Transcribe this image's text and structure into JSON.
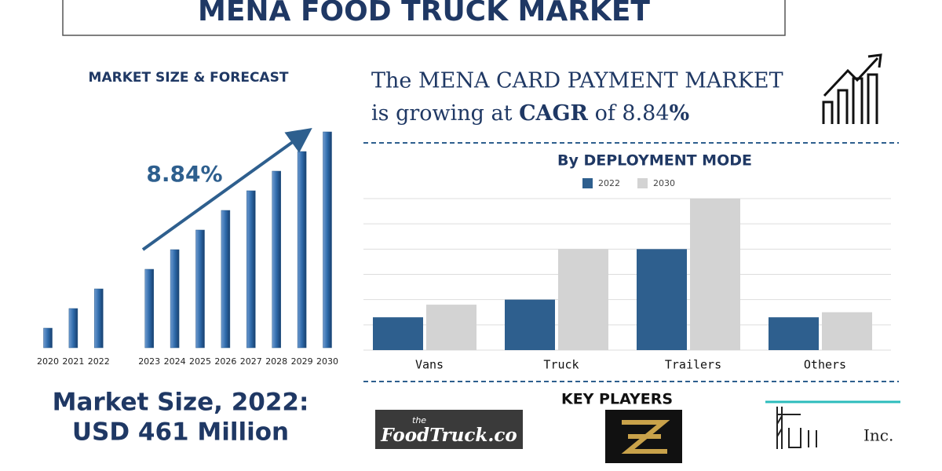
{
  "header": {
    "title": "MENA FOOD TRUCK MARKET"
  },
  "forecast": {
    "heading": "MARKET SIZE & FORECAST",
    "size_line1": "Market Size, 2022:",
    "size_line2": "USD 461 Million"
  },
  "headline": {
    "line1": "The MENA CARD PAYMENT MARKET",
    "line2_a": "is growing at ",
    "line2_b": "CAGR",
    "line2_c": " of 8.84",
    "line2_d": "%"
  },
  "key_players": {
    "heading": "KEY PLAYERS",
    "logos": [
      "the",
      "FoodTruck.co",
      "Inc."
    ]
  },
  "chart_data": [
    {
      "type": "bar",
      "categories": [
        "2020",
        "2021",
        "2022",
        "2023",
        "2024",
        "2025",
        "2026",
        "2027",
        "2028",
        "2029",
        "2030"
      ],
      "values": [
        1,
        2,
        3,
        4,
        5,
        6,
        7,
        8,
        9,
        10,
        11
      ],
      "color": "#2e5f8e",
      "annotation": "8.84%"
    },
    {
      "type": "grouped-bar",
      "title": "By DEPLOYMENT MODE",
      "categories": [
        "Vans",
        "Truck",
        "Trailers",
        "Others"
      ],
      "series": [
        {
          "name": "2022",
          "color": "#2e5f8e",
          "values": [
            1.3,
            2,
            4,
            1.3
          ]
        },
        {
          "name": "2030",
          "color": "#d3d3d3",
          "values": [
            1.8,
            4,
            6,
            1.5
          ]
        }
      ],
      "ylim": [
        0,
        6
      ],
      "yticks": [
        0,
        1,
        2,
        3,
        4,
        5,
        6
      ],
      "grid": true,
      "legend": "top"
    }
  ]
}
